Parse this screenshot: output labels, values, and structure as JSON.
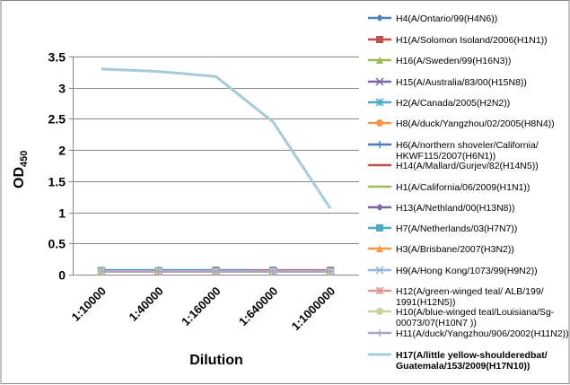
{
  "chart_data": {
    "type": "line",
    "title": "",
    "xlabel": "Dilution",
    "ylabel": "OD",
    "ylabel_subscript": "450",
    "categories": [
      "1:10000",
      "1:40000",
      "1:160000",
      "1:640000",
      "1:1000000"
    ],
    "ylim": [
      0,
      3.5
    ],
    "yticks": [
      "0",
      "0.5",
      "1",
      "1.5",
      "2",
      "2.5",
      "3",
      "3.5"
    ],
    "grid": true,
    "legend_position": "right",
    "series": [
      {
        "name": [
          "H4(A/Ontario/99(H4N6))"
        ],
        "color": "#4F81BD",
        "marker": "diamond",
        "values": [
          0.06,
          0.06,
          0.06,
          0.06,
          0.06
        ]
      },
      {
        "name": [
          "H1(A/Solomon Isoland/2006(H1N1))"
        ],
        "color": "#C0504D",
        "marker": "square",
        "values": [
          0.06,
          0.06,
          0.07,
          0.07,
          0.07
        ]
      },
      {
        "name": [
          "H16(A/Sweden/99(H16N3))"
        ],
        "color": "#9BBB59",
        "marker": "triangle",
        "values": [
          0.06,
          0.06,
          0.06,
          0.06,
          0.06
        ]
      },
      {
        "name": [
          "H15(A/Australia/83/00(H15N8))"
        ],
        "color": "#8064A2",
        "marker": "x",
        "values": [
          0.06,
          0.06,
          0.06,
          0.06,
          0.06
        ]
      },
      {
        "name": [
          "H2(A/Canada/2005(H2N2))"
        ],
        "color": "#4BACC6",
        "marker": "star",
        "values": [
          0.06,
          0.06,
          0.06,
          0.06,
          0.06
        ]
      },
      {
        "name": [
          "H8(A/duck/Yangzhou/02/2005(H8N4))"
        ],
        "color": "#F79646",
        "marker": "circle",
        "values": [
          0.05,
          0.05,
          0.05,
          0.05,
          0.05
        ]
      },
      {
        "name": [
          "H6(A/northern shoveler/California/",
          "HKWF115/2007(H6N1))"
        ],
        "color": "#4A7EBB",
        "marker": "plus",
        "values": [
          0.07,
          0.07,
          0.07,
          0.06,
          0.06
        ]
      },
      {
        "name": [
          "H14(A/Mallard/Gurjev/82(H14N5))"
        ],
        "color": "#C0504D",
        "marker": "none",
        "values": [
          0.06,
          0.06,
          0.06,
          0.06,
          0.05
        ]
      },
      {
        "name": [
          "H1(A/California/06/2009(H1N1))"
        ],
        "color": "#9BBB59",
        "marker": "none",
        "values": [
          0.06,
          0.06,
          0.06,
          0.06,
          0.06
        ]
      },
      {
        "name": [
          "H13(A/Nethland/00(H13N8))"
        ],
        "color": "#8064A2",
        "marker": "diamond",
        "values": [
          0.06,
          0.06,
          0.06,
          0.06,
          0.06
        ]
      },
      {
        "name": [
          "H7(A/Netherlands/03(H7N7))"
        ],
        "color": "#4BACC6",
        "marker": "square",
        "values": [
          0.06,
          0.06,
          0.06,
          0.06,
          0.06
        ]
      },
      {
        "name": [
          "H3(A/Brisbane/2007(H3N2))"
        ],
        "color": "#F79646",
        "marker": "triangle",
        "values": [
          0.05,
          0.05,
          0.05,
          0.05,
          0.05
        ]
      },
      {
        "name": [
          "H9(A/Hong Kong/1073/99(H9N2))"
        ],
        "color": "#95B3D7",
        "marker": "x",
        "values": [
          0.05,
          0.05,
          0.05,
          0.05,
          0.05
        ]
      },
      {
        "name": [
          "H12(A/green-winged teal/ ALB/199/",
          "1991(H12N5))"
        ],
        "color": "#D99694",
        "marker": "star",
        "values": [
          0.05,
          0.05,
          0.05,
          0.05,
          0.05
        ]
      },
      {
        "name": [
          "H10(A/blue-winged teal/Louisiana/Sg-",
          "00073/07(H10N7 ))"
        ],
        "color": "#C3D69B",
        "marker": "circle",
        "values": [
          0.05,
          0.05,
          0.05,
          0.05,
          0.05
        ]
      },
      {
        "name": [
          "H11(A/duck/Yangzhou/906/2002(H11N2))"
        ],
        "color": "#B3A2C7",
        "marker": "plus",
        "values": [
          0.05,
          0.05,
          0.05,
          0.05,
          0.05
        ]
      },
      {
        "name": [
          "H17(A/little yellow-shoulderedbat/",
          "Guatemala/153/2009(H17N10))"
        ],
        "color": "#A5CAD8",
        "marker": "none",
        "bold": true,
        "values": [
          3.3,
          3.26,
          3.18,
          2.45,
          1.06
        ]
      }
    ]
  }
}
